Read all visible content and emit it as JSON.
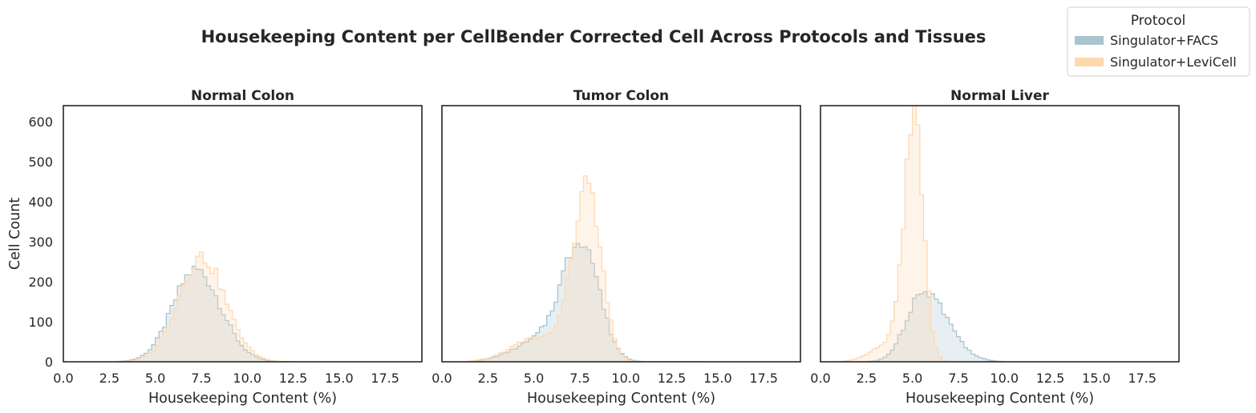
{
  "chart_data": {
    "type": "histogram",
    "title": "Housekeeping Content per CellBender Corrected Cell Across Protocols and Tissues",
    "xlabel": "Housekeeping Content (%)",
    "ylabel": "Cell Count",
    "xlim": [
      0,
      19.5
    ],
    "ylim": [
      0,
      640
    ],
    "xticks": [
      "0.0",
      "2.5",
      "5.0",
      "7.5",
      "10.0",
      "12.5",
      "15.0",
      "17.5"
    ],
    "yticks": [
      "0",
      "100",
      "200",
      "300",
      "400",
      "500",
      "600"
    ],
    "bin_width": 0.2,
    "grid": false,
    "legend": {
      "title": "Protocol",
      "placement": "top-right",
      "entries": [
        "Singulator+FACS",
        "Singulator+LeviCell"
      ]
    },
    "colors": {
      "Singulator+FACS": "#a9c4cf",
      "Singulator+LeviCell": "#ffd8b0"
    },
    "panels": [
      {
        "title": "Normal Colon",
        "series": [
          {
            "name": "Singulator+FACS",
            "shape": "gaussian",
            "peak_x": 7.2,
            "peak_y": 230,
            "sigma_left": 1.25,
            "sigma_right": 1.35,
            "range": [
              3.0,
              12.6
            ]
          },
          {
            "name": "Singulator+LeviCell",
            "shape": "gaussian",
            "peak_x": 7.5,
            "peak_y": 262,
            "sigma_left": 1.25,
            "sigma_right": 1.3,
            "range": [
              3.0,
              12.6
            ]
          }
        ]
      },
      {
        "title": "Tumor Colon",
        "series": [
          {
            "name": "Singulator+FACS",
            "shape": "gaussian",
            "peak_x": 7.6,
            "peak_y": 298,
            "sigma_left": 1.05,
            "sigma_right": 0.95,
            "range": [
              1.5,
              14.0
            ],
            "shoulder_x": 5.2,
            "shoulder_y": 48,
            "shoulder_sigma": 1.4
          },
          {
            "name": "Singulator+LeviCell",
            "shape": "gaussian",
            "peak_x": 7.9,
            "peak_y": 430,
            "sigma_left": 0.8,
            "sigma_right": 0.75,
            "range": [
              1.5,
              14.5
            ],
            "shoulder_x": 5.2,
            "shoulder_y": 60,
            "shoulder_sigma": 1.4
          }
        ]
      },
      {
        "title": "Normal Liver",
        "series": [
          {
            "name": "Singulator+FACS",
            "shape": "gaussian",
            "peak_x": 5.6,
            "peak_y": 180,
            "sigma_left": 0.9,
            "sigma_right": 1.3,
            "range": [
              2.0,
              10.0
            ]
          },
          {
            "name": "Singulator+LeviCell",
            "shape": "gaussian",
            "peak_x": 5.1,
            "peak_y": 608,
            "sigma_left": 0.55,
            "sigma_right": 0.5,
            "range": [
              0.8,
              8.8
            ],
            "shoulder_x": 3.6,
            "shoulder_y": 40,
            "shoulder_sigma": 0.9
          }
        ]
      }
    ]
  }
}
